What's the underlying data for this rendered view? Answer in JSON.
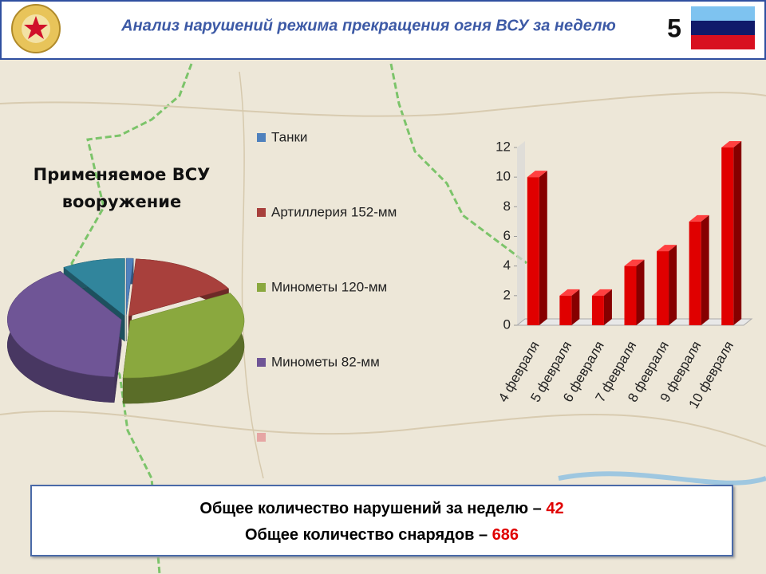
{
  "header": {
    "title": "Анализ нарушений режима прекращения огня ВСУ за неделю",
    "page": "5"
  },
  "chart_data": [
    {
      "type": "pie",
      "title": "Применяемое ВСУ вооружение",
      "categories": [
        "Танки",
        "Артиллерия 152-мм",
        "Минометы 120-мм",
        "Минометы 82-мм",
        null
      ],
      "values": [
        1,
        16,
        34,
        40,
        9
      ],
      "colors": [
        "#4f81bd",
        "#a8403c",
        "#8aa83e",
        "#6f5596",
        "#31859c"
      ]
    },
    {
      "type": "bar",
      "categories": [
        "4 февраля",
        "5 февраля",
        "6 февраля",
        "7 февраля",
        "8 февраля",
        "9 февраля",
        "10 февраля"
      ],
      "values": [
        10,
        2,
        2,
        4,
        5,
        7,
        12
      ],
      "color": "#e00000",
      "ylim": [
        0,
        12
      ],
      "yticks": [
        0,
        2,
        4,
        6,
        8,
        10,
        12
      ]
    }
  ],
  "summary": {
    "violations_label": "Общее количество нарушений за неделю –",
    "violations_value": "42",
    "shells_label": "Общее количество снарядов –",
    "shells_value": "686"
  }
}
